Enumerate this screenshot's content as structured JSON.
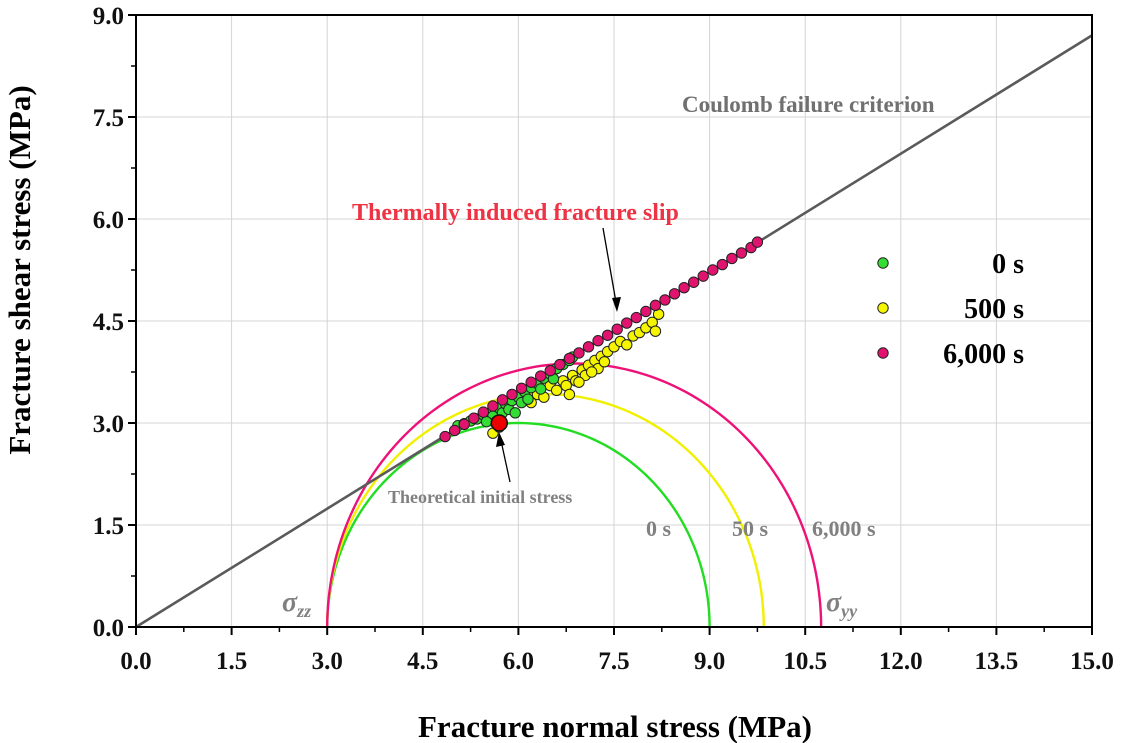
{
  "chart_data": {
    "type": "scatter",
    "title": "",
    "xlabel": "Fracture normal stress (MPa)",
    "ylabel": "Fracture shear stress (MPa)",
    "xlim": [
      0,
      15
    ],
    "ylim": [
      0,
      9
    ],
    "x_ticks": [
      "0.0",
      "1.5",
      "3.0",
      "4.5",
      "6.0",
      "7.5",
      "9.0",
      "10.5",
      "12.0",
      "13.5",
      "15.0"
    ],
    "y_ticks": [
      "0.0",
      "1.5",
      "3.0",
      "4.5",
      "6.0",
      "7.5",
      "9.0"
    ],
    "grid": true,
    "legend_position": "right",
    "failure_line": {
      "name": "Coulomb failure criterion",
      "x": [
        0,
        15
      ],
      "y": [
        0,
        8.7
      ]
    },
    "mohr_circles": [
      {
        "label": "0 s",
        "sigma_min": 3.0,
        "sigma_max": 9.0,
        "color": "#22dd22"
      },
      {
        "label": "50 s",
        "sigma_min": 3.0,
        "sigma_max": 9.85,
        "color": "#f0f000"
      },
      {
        "label": "6,000 s",
        "sigma_min": 3.0,
        "sigma_max": 10.75,
        "color": "#ee1177"
      }
    ],
    "series": [
      {
        "name": "0 s",
        "color": "#33dd33",
        "points": [
          [
            5.05,
            2.96
          ],
          [
            5.15,
            2.99
          ],
          [
            5.25,
            3.03
          ],
          [
            5.35,
            3.06
          ],
          [
            5.45,
            3.12
          ],
          [
            5.55,
            3.15
          ],
          [
            5.6,
            3.1
          ],
          [
            5.7,
            3.22
          ],
          [
            5.75,
            3.15
          ],
          [
            5.8,
            3.28
          ],
          [
            5.85,
            3.2
          ],
          [
            5.9,
            3.33
          ],
          [
            5.95,
            3.15
          ],
          [
            6.0,
            3.38
          ],
          [
            6.05,
            3.3
          ],
          [
            6.1,
            3.46
          ],
          [
            6.15,
            3.35
          ],
          [
            6.2,
            3.52
          ],
          [
            6.3,
            3.58
          ],
          [
            6.35,
            3.5
          ],
          [
            6.4,
            3.66
          ],
          [
            6.5,
            3.72
          ],
          [
            6.55,
            3.65
          ],
          [
            6.6,
            3.8
          ],
          [
            6.7,
            3.86
          ],
          [
            6.8,
            3.92
          ],
          [
            6.85,
            3.97
          ],
          [
            5.65,
            3.02
          ],
          [
            5.5,
            3.02
          ],
          [
            5.7,
            2.94
          ]
        ]
      },
      {
        "name": "500 s",
        "color": "#f5f500",
        "points": [
          [
            5.6,
            2.85
          ],
          [
            6.2,
            3.3
          ],
          [
            6.3,
            3.42
          ],
          [
            6.4,
            3.38
          ],
          [
            6.5,
            3.55
          ],
          [
            6.6,
            3.48
          ],
          [
            6.7,
            3.62
          ],
          [
            6.75,
            3.55
          ],
          [
            6.8,
            3.42
          ],
          [
            6.85,
            3.7
          ],
          [
            6.9,
            3.62
          ],
          [
            7.0,
            3.78
          ],
          [
            7.05,
            3.7
          ],
          [
            7.1,
            3.85
          ],
          [
            7.2,
            3.92
          ],
          [
            7.25,
            3.8
          ],
          [
            7.3,
            3.98
          ],
          [
            7.4,
            4.05
          ],
          [
            7.5,
            4.12
          ],
          [
            7.6,
            4.2
          ],
          [
            7.7,
            4.15
          ],
          [
            7.8,
            4.28
          ],
          [
            7.9,
            4.33
          ],
          [
            8.0,
            4.4
          ],
          [
            8.1,
            4.48
          ],
          [
            8.2,
            4.6
          ],
          [
            7.35,
            3.9
          ],
          [
            7.15,
            3.75
          ],
          [
            6.95,
            3.6
          ],
          [
            8.15,
            4.35
          ]
        ]
      },
      {
        "name": "6,000 s",
        "color": "#e0146e",
        "points": [
          [
            4.85,
            2.8
          ],
          [
            5.0,
            2.89
          ],
          [
            5.15,
            2.98
          ],
          [
            5.3,
            3.07
          ],
          [
            5.45,
            3.16
          ],
          [
            5.6,
            3.25
          ],
          [
            5.75,
            3.34
          ],
          [
            5.9,
            3.42
          ],
          [
            6.05,
            3.51
          ],
          [
            6.2,
            3.6
          ],
          [
            6.35,
            3.69
          ],
          [
            6.5,
            3.77
          ],
          [
            6.65,
            3.86
          ],
          [
            6.8,
            3.95
          ],
          [
            6.95,
            4.03
          ],
          [
            7.1,
            4.12
          ],
          [
            7.25,
            4.21
          ],
          [
            7.4,
            4.29
          ],
          [
            7.55,
            4.38
          ],
          [
            7.7,
            4.47
          ],
          [
            7.85,
            4.55
          ],
          [
            8.0,
            4.64
          ],
          [
            8.15,
            4.73
          ],
          [
            8.3,
            4.81
          ],
          [
            8.45,
            4.9
          ],
          [
            8.6,
            4.99
          ],
          [
            8.75,
            5.07
          ],
          [
            8.9,
            5.16
          ],
          [
            9.05,
            5.25
          ],
          [
            9.2,
            5.33
          ],
          [
            9.35,
            5.42
          ],
          [
            9.5,
            5.5
          ],
          [
            9.65,
            5.58
          ],
          [
            9.75,
            5.66
          ]
        ]
      }
    ],
    "initial_stress_point": {
      "x": 5.7,
      "y": 3.0,
      "color": "#ee0000"
    },
    "annotations": {
      "coulomb_label": "Coulomb failure criterion",
      "slip_label": "Thermally induced fracture slip",
      "initial_label": "Theoretical initial stress",
      "circle_label_0": "0 s",
      "circle_label_50": "50 s",
      "circle_label_6000": "6,000 s",
      "sigma_zz_base": "σ",
      "sigma_zz_sub": "zz",
      "sigma_yy_base": "σ",
      "sigma_yy_sub": "yy"
    },
    "legend": [
      {
        "label": "0 s",
        "color": "#33dd33"
      },
      {
        "label": "500 s",
        "color": "#f5f500"
      },
      {
        "label": "6,000 s",
        "color": "#e0146e"
      }
    ]
  }
}
